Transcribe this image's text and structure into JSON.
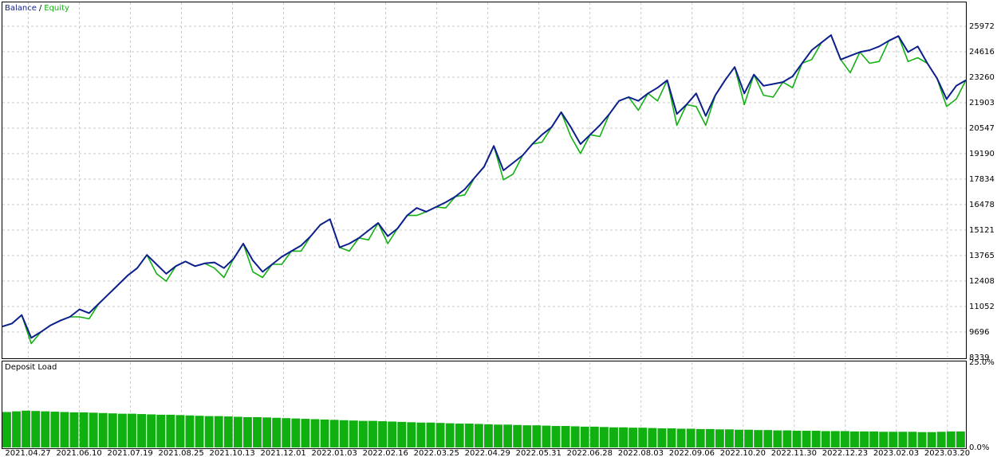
{
  "chart_data": [
    {
      "type": "line",
      "legend_separator": "/",
      "grid": true,
      "xlim": [
        0,
        100
      ],
      "ylim": [
        8339,
        27244
      ],
      "yticks": [
        8339,
        9696,
        11052,
        12408,
        13765,
        15121,
        16478,
        17834,
        19190,
        20547,
        21903,
        23260,
        24616,
        25972
      ],
      "x": [
        0,
        1,
        2,
        3,
        4,
        5,
        6,
        7,
        8,
        9,
        10,
        11,
        12,
        13,
        14,
        15,
        16,
        17,
        18,
        19,
        20,
        21,
        22,
        23,
        24,
        25,
        26,
        27,
        28,
        29,
        30,
        31,
        32,
        33,
        34,
        35,
        36,
        37,
        38,
        39,
        40,
        41,
        42,
        43,
        44,
        45,
        46,
        47,
        48,
        49,
        50,
        51,
        52,
        53,
        54,
        55,
        56,
        57,
        58,
        59,
        60,
        61,
        62,
        63,
        64,
        65,
        66,
        67,
        68,
        69,
        70,
        71,
        72,
        73,
        74,
        75,
        76,
        77,
        78,
        79,
        80,
        81,
        82,
        83,
        84,
        85,
        86,
        87,
        88,
        89,
        90,
        91,
        92,
        93,
        94,
        95,
        96,
        97,
        98,
        99,
        100
      ],
      "series": [
        {
          "name": "Equity",
          "color": "#14b014",
          "values": [
            9990,
            10150,
            10600,
            9080,
            9700,
            10050,
            10300,
            10500,
            10500,
            10400,
            11200,
            11700,
            12200,
            12700,
            13100,
            13800,
            12800,
            12400,
            13200,
            13450,
            13200,
            13350,
            13100,
            12600,
            13600,
            14400,
            12900,
            12600,
            13300,
            13300,
            14000,
            14000,
            14800,
            15400,
            15700,
            14200,
            14000,
            14700,
            14600,
            15500,
            14400,
            15200,
            15900,
            15900,
            16100,
            16350,
            16300,
            16900,
            17000,
            17900,
            18500,
            19600,
            17800,
            18100,
            19100,
            19700,
            19800,
            20600,
            21400,
            20100,
            19200,
            20200,
            20100,
            21300,
            22000,
            22200,
            21500,
            22400,
            22000,
            23100,
            20700,
            21800,
            21700,
            20700,
            22300,
            23100,
            23800,
            21800,
            23400,
            22300,
            22200,
            23000,
            22700,
            24000,
            24200,
            25100,
            25500,
            24200,
            23500,
            24600,
            24000,
            24100,
            25200,
            25450,
            24100,
            24300,
            24000,
            23200,
            21700,
            22100,
            23100
          ]
        },
        {
          "name": "Balance",
          "color": "#0c1f8c",
          "values": [
            9990,
            10150,
            10600,
            9380,
            9700,
            10050,
            10300,
            10500,
            10900,
            10700,
            11200,
            11700,
            12200,
            12700,
            13100,
            13800,
            13300,
            12800,
            13200,
            13450,
            13200,
            13350,
            13400,
            13100,
            13600,
            14400,
            13500,
            12900,
            13300,
            13700,
            14000,
            14300,
            14800,
            15400,
            15700,
            14200,
            14400,
            14700,
            15100,
            15500,
            14800,
            15200,
            15900,
            16300,
            16100,
            16350,
            16600,
            16900,
            17300,
            17900,
            18500,
            19600,
            18300,
            18700,
            19100,
            19700,
            20200,
            20600,
            21400,
            20600,
            19700,
            20200,
            20700,
            21300,
            22000,
            22200,
            22000,
            22400,
            22700,
            23100,
            21300,
            21800,
            22400,
            21200,
            22300,
            23100,
            23800,
            22400,
            23400,
            22800,
            22900,
            23000,
            23300,
            24000,
            24700,
            25100,
            25500,
            24200,
            24400,
            24600,
            24700,
            24900,
            25200,
            25450,
            24600,
            24900,
            24000,
            23200,
            22100,
            22800,
            23100
          ]
        }
      ]
    },
    {
      "type": "bar",
      "title": "Deposit Load",
      "color": "#10b010",
      "grid": true,
      "xlim": [
        0,
        100
      ],
      "ylim": [
        0,
        25
      ],
      "yticks": [
        {
          "value": 25,
          "label": "25.0%"
        },
        {
          "value": 0,
          "label": "0.0%"
        }
      ],
      "xticks": [
        {
          "value": 0.2,
          "label": "2021.04.27"
        },
        {
          "value": 5.5,
          "label": "2021.06.10"
        },
        {
          "value": 10.8,
          "label": "2021.07.19"
        },
        {
          "value": 16.1,
          "label": "2021.08.25"
        },
        {
          "value": 21.4,
          "label": "2021.10.13"
        },
        {
          "value": 26.7,
          "label": "2021.12.01"
        },
        {
          "value": 32,
          "label": "2022.01.03"
        },
        {
          "value": 37.3,
          "label": "2022.02.16"
        },
        {
          "value": 42.6,
          "label": "2022.03.25"
        },
        {
          "value": 47.9,
          "label": "2022.04.29"
        },
        {
          "value": 53.2,
          "label": "2022.05.31"
        },
        {
          "value": 58.5,
          "label": "2022.06.28"
        },
        {
          "value": 63.8,
          "label": "2022.08.03"
        },
        {
          "value": 69.1,
          "label": "2022.09.06"
        },
        {
          "value": 74.4,
          "label": "2022.10.20"
        },
        {
          "value": 79.7,
          "label": "2022.11.30"
        },
        {
          "value": 85,
          "label": "2022.12.23"
        },
        {
          "value": 90.3,
          "label": "2023.02.03"
        },
        {
          "value": 95.6,
          "label": "2023.03.20"
        }
      ],
      "x": [
        0,
        1,
        2,
        3,
        4,
        5,
        6,
        7,
        8,
        9,
        10,
        11,
        12,
        13,
        14,
        15,
        16,
        17,
        18,
        19,
        20,
        21,
        22,
        23,
        24,
        25,
        26,
        27,
        28,
        29,
        30,
        31,
        32,
        33,
        34,
        35,
        36,
        37,
        38,
        39,
        40,
        41,
        42,
        43,
        44,
        45,
        46,
        47,
        48,
        49,
        50,
        51,
        52,
        53,
        54,
        55,
        56,
        57,
        58,
        59,
        60,
        61,
        62,
        63,
        64,
        65,
        66,
        67,
        68,
        69,
        70,
        71,
        72,
        73,
        74,
        75,
        76,
        77,
        78,
        79,
        80,
        81,
        82,
        83,
        84,
        85,
        86,
        87,
        88,
        89,
        90,
        91,
        92,
        93,
        94,
        95,
        96,
        97,
        98,
        99
      ],
      "values": [
        10.4,
        10.6,
        10.8,
        10.7,
        10.6,
        10.5,
        10.4,
        10.3,
        10.3,
        10.2,
        10.1,
        10.0,
        9.9,
        9.9,
        9.8,
        9.7,
        9.6,
        9.6,
        9.5,
        9.4,
        9.3,
        9.2,
        9.2,
        9.1,
        9.0,
        8.9,
        8.9,
        8.8,
        8.7,
        8.6,
        8.5,
        8.4,
        8.3,
        8.2,
        8.1,
        8.0,
        7.9,
        7.8,
        7.8,
        7.7,
        7.6,
        7.5,
        7.4,
        7.3,
        7.3,
        7.2,
        7.1,
        7.0,
        7.0,
        6.9,
        6.8,
        6.7,
        6.7,
        6.6,
        6.5,
        6.5,
        6.4,
        6.3,
        6.3,
        6.2,
        6.1,
        6.1,
        6.0,
        5.9,
        5.9,
        5.8,
        5.8,
        5.7,
        5.6,
        5.6,
        5.5,
        5.5,
        5.4,
        5.4,
        5.3,
        5.3,
        5.2,
        5.2,
        5.1,
        5.1,
        5.0,
        5.0,
        4.9,
        4.9,
        4.9,
        4.8,
        4.8,
        4.8,
        4.7,
        4.7,
        4.7,
        4.6,
        4.6,
        4.6,
        4.6,
        4.5,
        4.5,
        4.6,
        4.7,
        4.7
      ]
    }
  ]
}
